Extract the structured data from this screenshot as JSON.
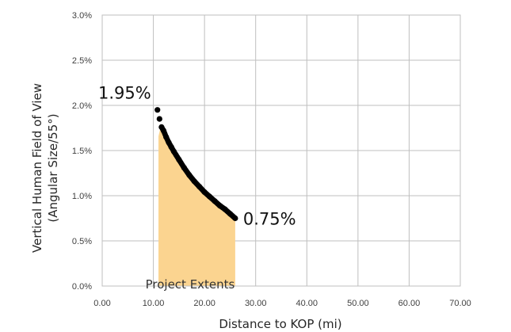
{
  "chart_data": {
    "type": "scatter",
    "title": "",
    "xlabel": "Distance to KOP (mi)",
    "ylabel": "Vertical Human Field of View",
    "ylabel_line2": "(Angular Size/55°)",
    "xlim": [
      0,
      70
    ],
    "ylim": [
      0,
      0.03
    ],
    "x_ticks": [
      "0.00",
      "10.00",
      "20.00",
      "30.00",
      "40.00",
      "50.00",
      "60.00",
      "70.00"
    ],
    "y_ticks": [
      "0.0%",
      "0.5%",
      "1.0%",
      "1.5%",
      "2.0%",
      "2.5%",
      "3.0%"
    ],
    "grid": true,
    "legend": "none",
    "colors": {
      "points": "#000000",
      "region": "#fbd490",
      "grid": "#bfbfbf"
    },
    "region": {
      "label": "Project Extents",
      "x": [
        11,
        26
      ],
      "type": "area-under-curve"
    },
    "series": [
      {
        "x": [
          10.8,
          11.2,
          11.6,
          12.0,
          12.5,
          13.0,
          13.5,
          14.0,
          15.0,
          16.0,
          17.0,
          18.0,
          19.0,
          20.0,
          21.0,
          22.0,
          23.0,
          24.0,
          25.0,
          26.0
        ],
        "y": [
          0.0195,
          0.0185,
          0.0176,
          0.0172,
          0.0165,
          0.0159,
          0.0154,
          0.0149,
          0.014,
          0.0131,
          0.0123,
          0.0116,
          0.011,
          0.0104,
          0.0099,
          0.0094,
          0.0089,
          0.0085,
          0.008,
          0.0075
        ]
      }
    ],
    "annotations": [
      {
        "text": "1.95%",
        "x": 10.8,
        "y": 0.0195
      },
      {
        "text": "0.75%",
        "x": 26.0,
        "y": 0.0075
      }
    ]
  }
}
